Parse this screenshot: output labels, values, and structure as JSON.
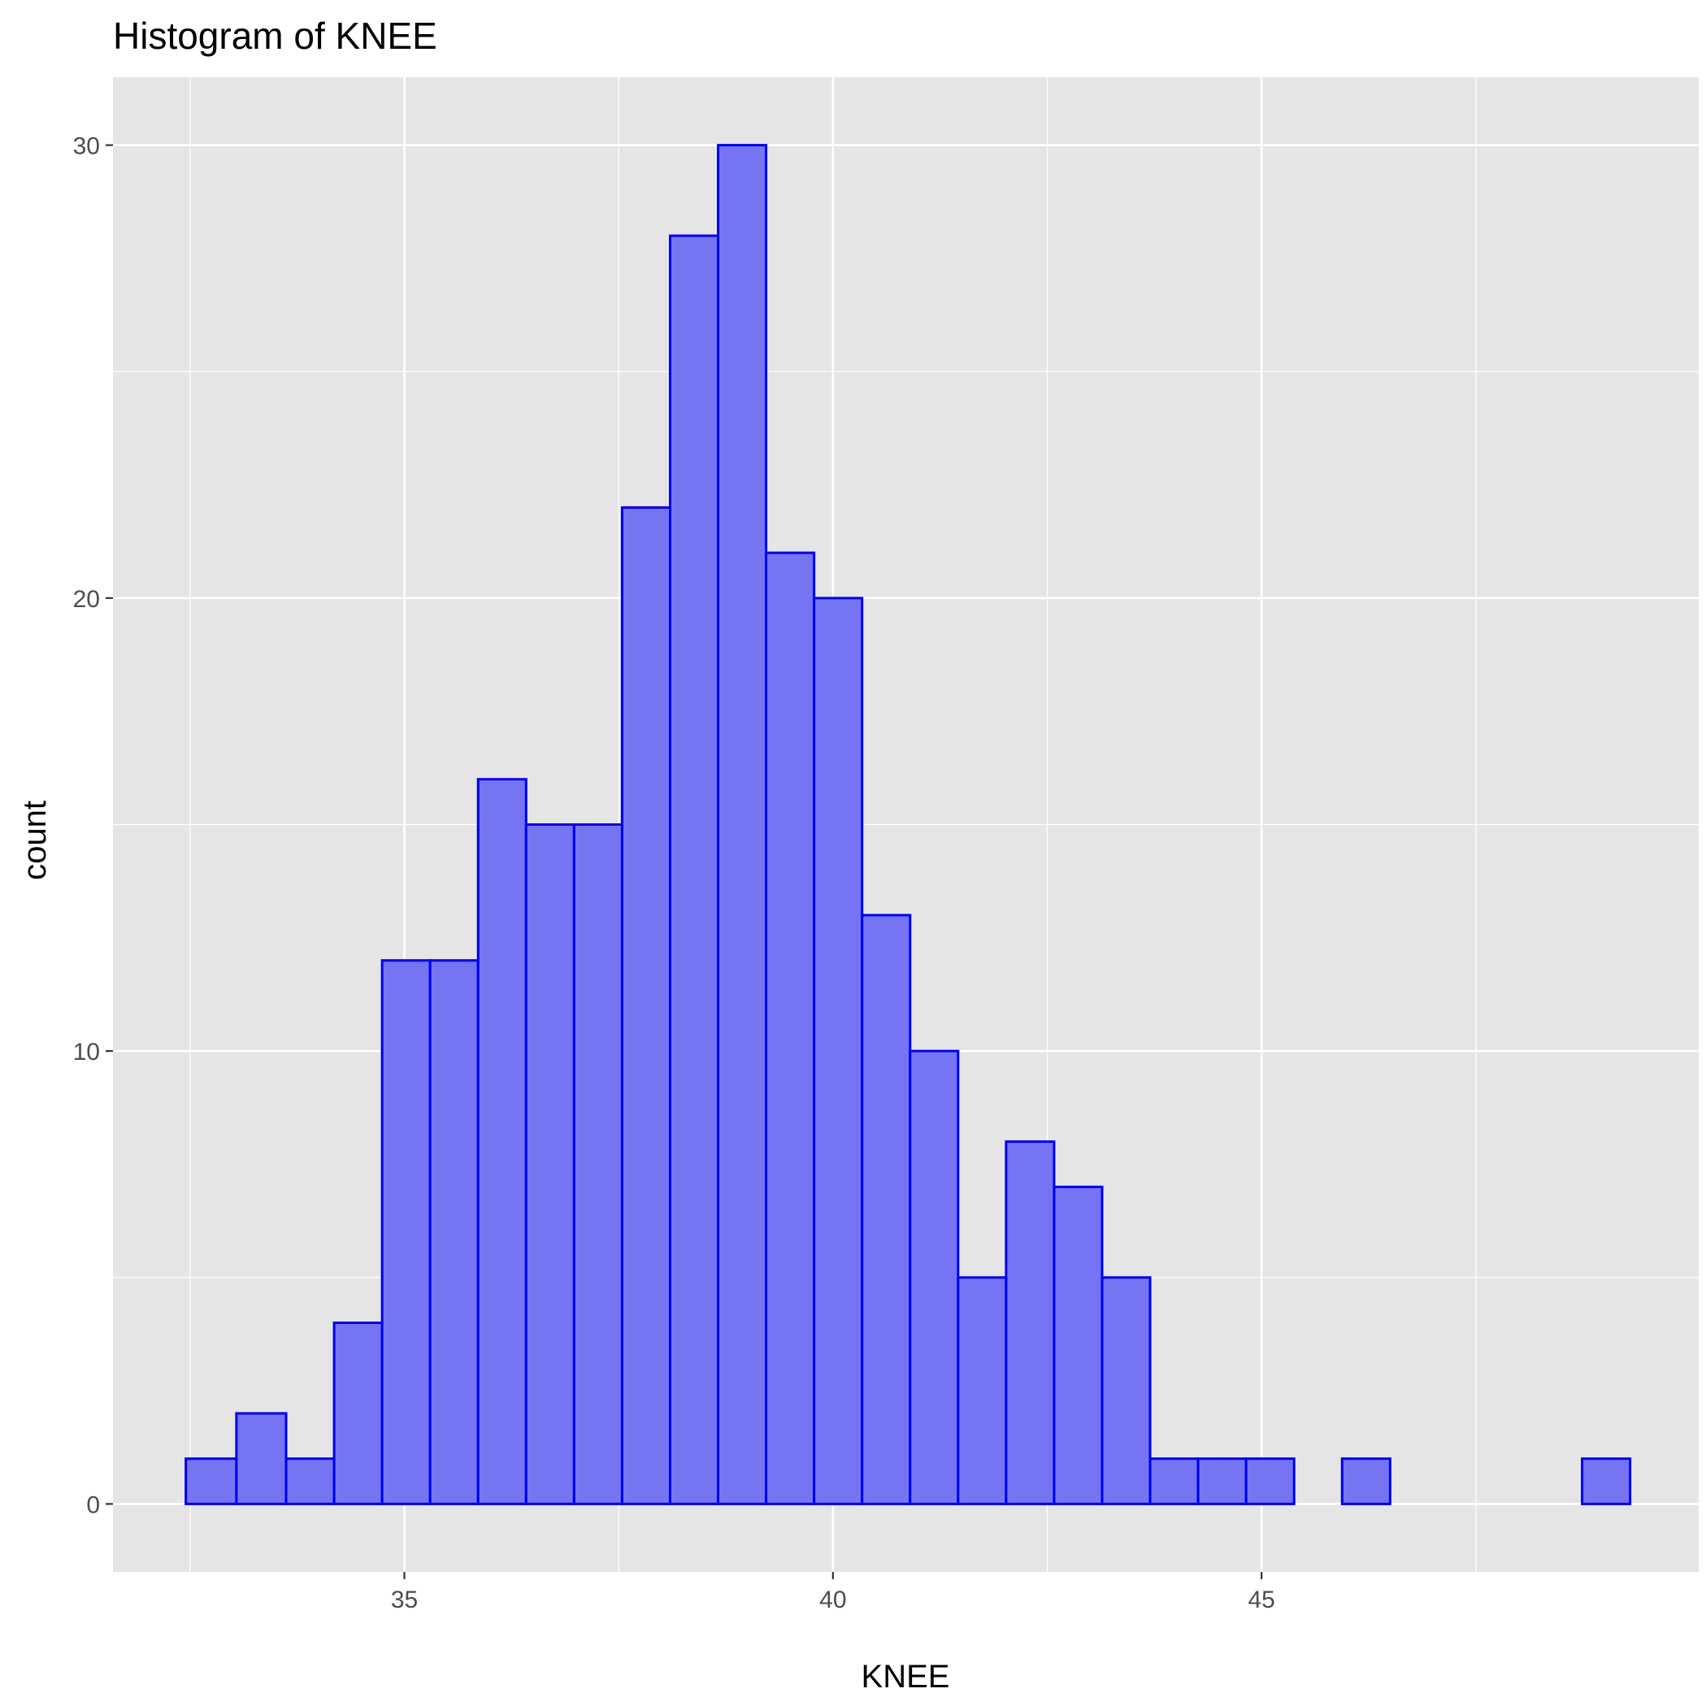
{
  "chart_data": {
    "type": "bar",
    "title": "Histogram of KNEE",
    "xlabel": "KNEE",
    "ylabel": "count",
    "bins": [
      {
        "start": 32.45,
        "end": 33.04,
        "count": 1
      },
      {
        "start": 33.04,
        "end": 33.62,
        "count": 2
      },
      {
        "start": 33.62,
        "end": 34.18,
        "count": 1
      },
      {
        "start": 34.18,
        "end": 34.74,
        "count": 4
      },
      {
        "start": 34.74,
        "end": 35.3,
        "count": 12
      },
      {
        "start": 35.3,
        "end": 35.86,
        "count": 12
      },
      {
        "start": 35.86,
        "end": 36.42,
        "count": 16
      },
      {
        "start": 36.42,
        "end": 36.98,
        "count": 15
      },
      {
        "start": 36.98,
        "end": 37.54,
        "count": 15
      },
      {
        "start": 37.54,
        "end": 38.1,
        "count": 22
      },
      {
        "start": 38.1,
        "end": 38.66,
        "count": 28
      },
      {
        "start": 38.66,
        "end": 39.22,
        "count": 30
      },
      {
        "start": 39.22,
        "end": 39.78,
        "count": 21
      },
      {
        "start": 39.78,
        "end": 40.34,
        "count": 20
      },
      {
        "start": 40.34,
        "end": 40.9,
        "count": 13
      },
      {
        "start": 40.9,
        "end": 41.46,
        "count": 10
      },
      {
        "start": 41.46,
        "end": 42.02,
        "count": 5
      },
      {
        "start": 42.02,
        "end": 42.58,
        "count": 8
      },
      {
        "start": 42.58,
        "end": 43.14,
        "count": 7
      },
      {
        "start": 43.14,
        "end": 43.7,
        "count": 5
      },
      {
        "start": 43.7,
        "end": 44.26,
        "count": 1
      },
      {
        "start": 44.26,
        "end": 44.82,
        "count": 1
      },
      {
        "start": 44.82,
        "end": 45.38,
        "count": 1
      },
      {
        "start": 45.38,
        "end": 45.94,
        "count": 0
      },
      {
        "start": 45.94,
        "end": 46.5,
        "count": 1
      },
      {
        "start": 46.5,
        "end": 47.06,
        "count": 0
      },
      {
        "start": 47.06,
        "end": 47.62,
        "count": 0
      },
      {
        "start": 47.62,
        "end": 48.18,
        "count": 0
      },
      {
        "start": 48.18,
        "end": 48.74,
        "count": 0
      },
      {
        "start": 48.74,
        "end": 49.3,
        "count": 1
      }
    ],
    "x_ticks": [
      35,
      40,
      45
    ],
    "y_ticks": [
      0,
      10,
      20,
      30
    ],
    "xlim": [
      31.6,
      50.1
    ],
    "ylim": [
      -1.5,
      31.5
    ],
    "grid": true,
    "legend": "none",
    "colors": {
      "panel_background": "#e5e5e5",
      "grid_line": "#ffffff",
      "bar_fill": "#7575f3",
      "bar_stroke": "#0000ee",
      "tick_label": "#4d4d4d",
      "tick_mark": "#333333"
    }
  }
}
